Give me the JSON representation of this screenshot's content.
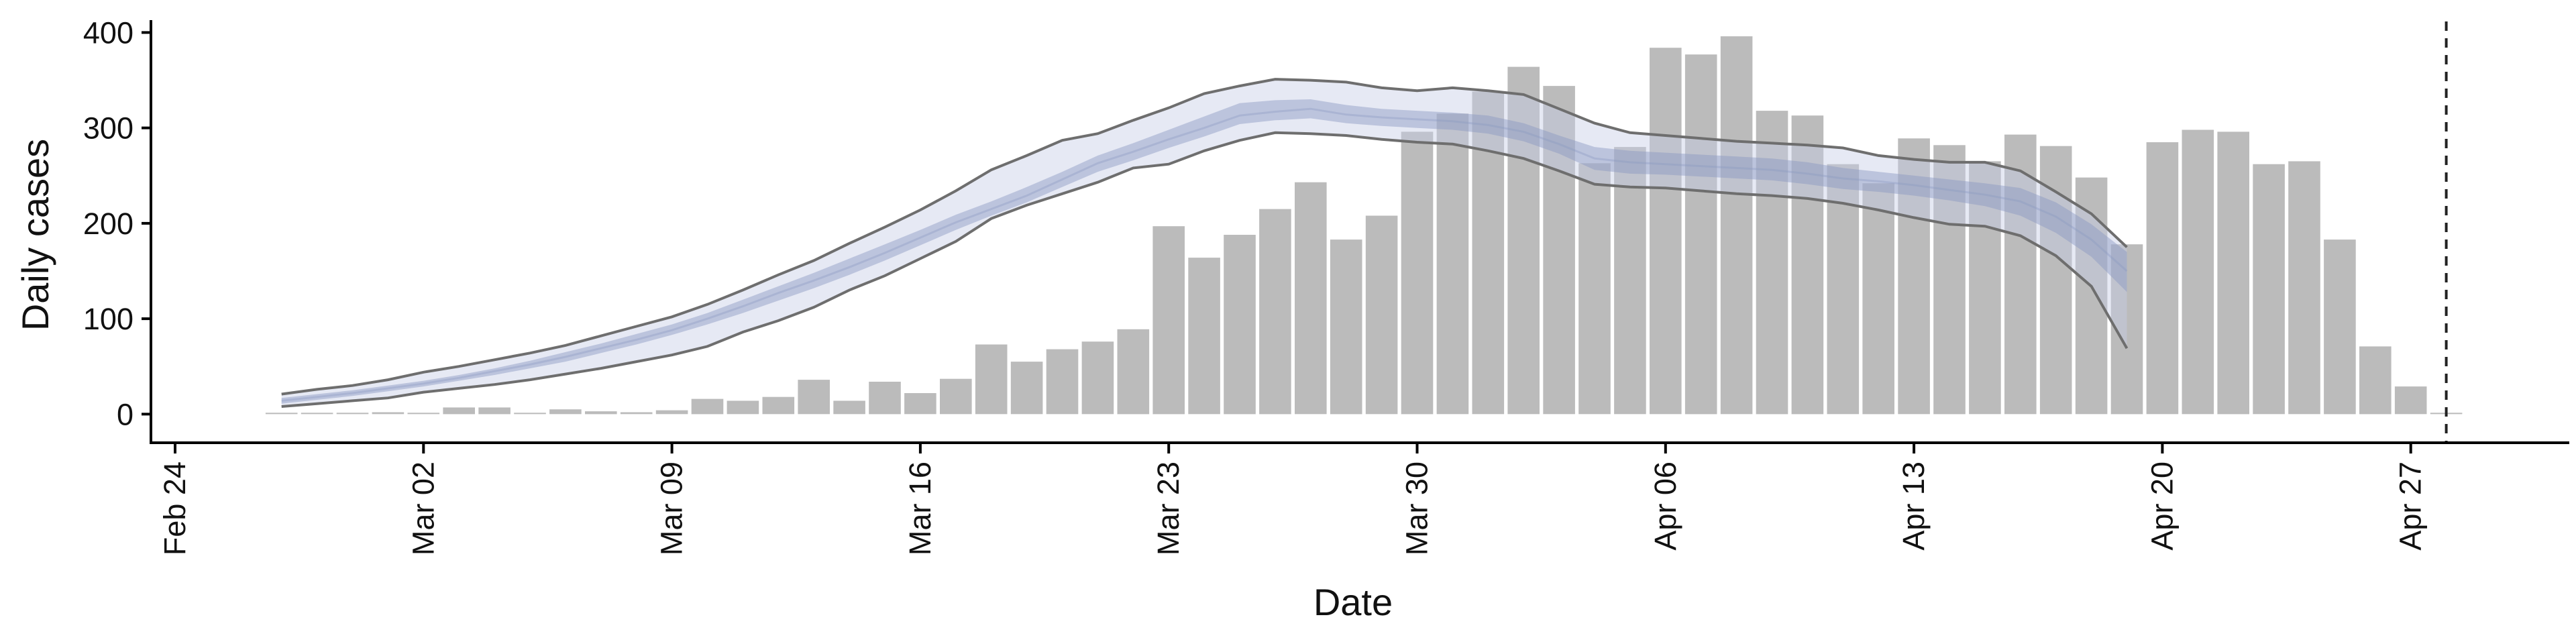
{
  "chart_data": {
    "type": "bar",
    "xlabel": "Date",
    "ylabel": "Daily cases",
    "ylim": [
      -30,
      420
    ],
    "yticks": [
      0,
      100,
      200,
      300,
      400
    ],
    "xticks": [
      {
        "date": "2020-02-24",
        "label": "Feb 24"
      },
      {
        "date": "2020-03-02",
        "label": "Mar 02"
      },
      {
        "date": "2020-03-09",
        "label": "Mar 09"
      },
      {
        "date": "2020-03-16",
        "label": "Mar 16"
      },
      {
        "date": "2020-03-23",
        "label": "Mar 23"
      },
      {
        "date": "2020-03-30",
        "label": "Mar 30"
      },
      {
        "date": "2020-04-06",
        "label": "Apr 06"
      },
      {
        "date": "2020-04-13",
        "label": "Apr 13"
      },
      {
        "date": "2020-04-20",
        "label": "Apr 20"
      },
      {
        "date": "2020-04-27",
        "label": "Apr 27"
      }
    ],
    "xlim": [
      "2020-02-24",
      "2020-04-30"
    ],
    "reference_line": {
      "date": "2020-04-28",
      "style": "dashed"
    },
    "grid": false,
    "bars": {
      "name": "Daily cases",
      "color": "#bbbbbb",
      "dates": [
        "2020-02-27",
        "2020-02-28",
        "2020-02-29",
        "2020-03-01",
        "2020-03-02",
        "2020-03-03",
        "2020-03-04",
        "2020-03-05",
        "2020-03-06",
        "2020-03-07",
        "2020-03-08",
        "2020-03-09",
        "2020-03-10",
        "2020-03-11",
        "2020-03-12",
        "2020-03-13",
        "2020-03-14",
        "2020-03-15",
        "2020-03-16",
        "2020-03-17",
        "2020-03-18",
        "2020-03-19",
        "2020-03-20",
        "2020-03-21",
        "2020-03-22",
        "2020-03-23",
        "2020-03-24",
        "2020-03-25",
        "2020-03-26",
        "2020-03-27",
        "2020-03-28",
        "2020-03-29",
        "2020-03-30",
        "2020-03-31",
        "2020-04-01",
        "2020-04-02",
        "2020-04-03",
        "2020-04-04",
        "2020-04-05",
        "2020-04-06",
        "2020-04-07",
        "2020-04-08",
        "2020-04-09",
        "2020-04-10",
        "2020-04-11",
        "2020-04-12",
        "2020-04-13",
        "2020-04-14",
        "2020-04-15",
        "2020-04-16",
        "2020-04-17",
        "2020-04-18",
        "2020-04-19",
        "2020-04-20",
        "2020-04-21",
        "2020-04-22",
        "2020-04-23",
        "2020-04-24",
        "2020-04-25",
        "2020-04-26",
        "2020-04-27",
        "2020-04-28"
      ],
      "values": [
        0,
        1,
        0,
        2,
        0,
        7,
        7,
        1,
        5,
        3,
        2,
        4,
        16,
        14,
        18,
        36,
        14,
        34,
        22,
        37,
        73,
        55,
        68,
        76,
        89,
        197,
        164,
        188,
        215,
        243,
        183,
        208,
        296,
        315,
        338,
        364,
        344,
        263,
        280,
        384,
        377,
        396,
        318,
        313,
        262,
        242,
        289,
        282,
        265,
        293,
        281,
        248,
        178,
        285,
        298,
        296,
        262,
        265,
        183,
        71,
        29,
        0
      ]
    },
    "model": {
      "color": "#8a97c0",
      "dates": [
        "2020-02-27",
        "2020-02-28",
        "2020-02-29",
        "2020-03-01",
        "2020-03-02",
        "2020-03-03",
        "2020-03-04",
        "2020-03-05",
        "2020-03-06",
        "2020-03-07",
        "2020-03-08",
        "2020-03-09",
        "2020-03-10",
        "2020-03-11",
        "2020-03-12",
        "2020-03-13",
        "2020-03-14",
        "2020-03-15",
        "2020-03-16",
        "2020-03-17",
        "2020-03-18",
        "2020-03-19",
        "2020-03-20",
        "2020-03-21",
        "2020-03-22",
        "2020-03-23",
        "2020-03-24",
        "2020-03-25",
        "2020-03-26",
        "2020-03-27",
        "2020-03-28",
        "2020-03-29",
        "2020-03-30",
        "2020-03-31",
        "2020-04-01",
        "2020-04-02",
        "2020-04-03",
        "2020-04-04",
        "2020-04-05",
        "2020-04-06",
        "2020-04-07",
        "2020-04-08",
        "2020-04-09",
        "2020-04-10",
        "2020-04-11",
        "2020-04-12",
        "2020-04-13",
        "2020-04-14",
        "2020-04-15",
        "2020-04-16",
        "2020-04-17",
        "2020-04-18",
        "2020-04-19"
      ],
      "median": [
        14,
        18,
        22,
        27,
        32,
        38,
        45,
        52,
        60,
        69,
        78,
        88,
        100,
        113,
        127,
        140,
        154,
        169,
        185,
        201,
        215,
        229,
        246,
        263,
        275,
        288,
        300,
        313,
        317,
        320,
        314,
        311,
        309,
        307,
        303,
        296,
        283,
        268,
        264,
        262,
        260,
        258,
        256,
        252,
        247,
        244,
        240,
        235,
        230,
        223,
        207,
        183,
        150
      ],
      "inner_lower": [
        11,
        15,
        19,
        24,
        29,
        35,
        41,
        48,
        55,
        64,
        73,
        83,
        94,
        106,
        119,
        132,
        146,
        161,
        177,
        193,
        208,
        222,
        238,
        254,
        266,
        279,
        291,
        304,
        308,
        310,
        305,
        302,
        300,
        298,
        294,
        286,
        273,
        256,
        252,
        251,
        249,
        247,
        245,
        241,
        236,
        233,
        229,
        224,
        218,
        208,
        190,
        165,
        128
      ],
      "inner_upper": [
        17,
        21,
        25,
        30,
        35,
        41,
        48,
        56,
        65,
        74,
        84,
        94,
        106,
        120,
        134,
        148,
        163,
        178,
        193,
        209,
        223,
        238,
        254,
        271,
        284,
        298,
        312,
        326,
        329,
        330,
        324,
        320,
        318,
        316,
        313,
        305,
        292,
        280,
        276,
        274,
        272,
        270,
        268,
        264,
        258,
        254,
        250,
        246,
        242,
        237,
        222,
        199,
        170
      ],
      "outer_lower": [
        8,
        11,
        14,
        17,
        23,
        27,
        31,
        36,
        42,
        48,
        55,
        62,
        71,
        86,
        98,
        112,
        130,
        145,
        163,
        181,
        205,
        219,
        231,
        243,
        258,
        262,
        276,
        287,
        295,
        294,
        292,
        288,
        285,
        283,
        276,
        268,
        255,
        241,
        238,
        237,
        234,
        231,
        229,
        226,
        221,
        214,
        206,
        199,
        197,
        187,
        166,
        134,
        69
      ],
      "outer_upper": [
        21,
        26,
        30,
        36,
        44,
        50,
        57,
        64,
        72,
        82,
        92,
        102,
        115,
        130,
        146,
        161,
        179,
        196,
        214,
        234,
        256,
        271,
        287,
        294,
        308,
        321,
        336,
        344,
        351,
        350,
        348,
        342,
        339,
        342,
        339,
        335,
        320,
        305,
        295,
        292,
        289,
        286,
        284,
        282,
        279,
        271,
        267,
        264,
        264,
        255,
        233,
        210,
        175
      ]
    }
  }
}
